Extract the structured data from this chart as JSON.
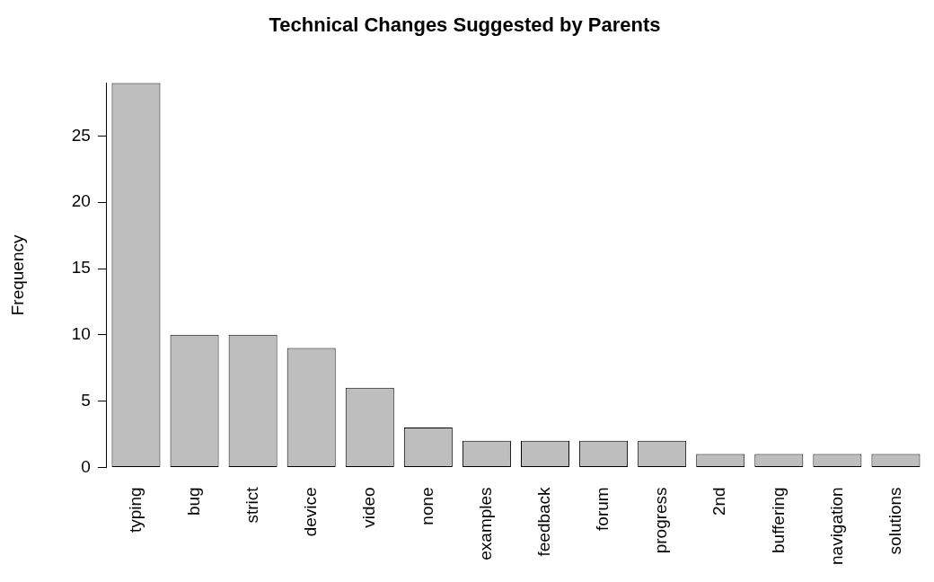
{
  "chart_data": {
    "type": "bar",
    "title": "Technical Changes Suggested by Parents",
    "ylabel": "Frequency",
    "categories": [
      "typing",
      "bug",
      "strict",
      "device",
      "video",
      "none",
      "examples",
      "feedback",
      "forum",
      "progress",
      "2nd",
      "buffering",
      "navigation",
      "solutions"
    ],
    "values": [
      29,
      10,
      10,
      9,
      6,
      3,
      2,
      2,
      2,
      2,
      1,
      1,
      1,
      1
    ],
    "color": "#bebebe",
    "ylim": [
      0,
      29
    ],
    "yticks": [
      0,
      5,
      10,
      15,
      20,
      25
    ],
    "grid": false,
    "legend": false
  }
}
